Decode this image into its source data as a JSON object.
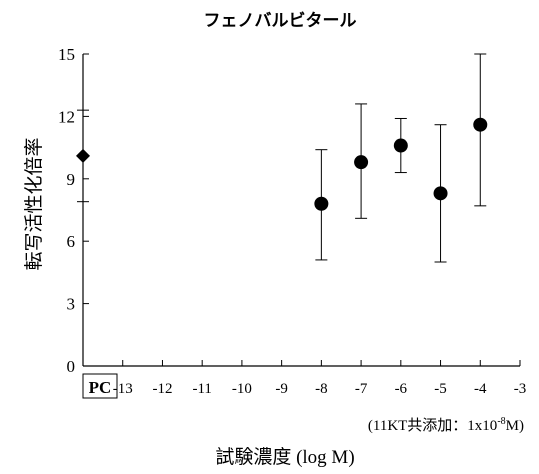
{
  "chart_data": {
    "type": "scatter",
    "title": "フェノバルビタール",
    "ylabel": "転写活性化倍率",
    "xlabel": "試験濃度 (log M)",
    "note_prefix": "(11KT共添加：1x10",
    "note_exp": "-8",
    "note_suffix": "M)",
    "ylim": [
      0,
      15
    ],
    "xlim": [
      -14,
      -3
    ],
    "yticks": [
      0,
      3,
      6,
      9,
      12,
      15
    ],
    "xticks": [
      -13,
      -12,
      -11,
      -10,
      -9,
      -8,
      -7,
      -6,
      -5,
      -4,
      -3
    ],
    "pc_label": "PC",
    "pc": {
      "y": 10.1,
      "err_low": 7.9,
      "err_high": 12.3,
      "marker": "diamond"
    },
    "points": [
      {
        "x": -8,
        "y": 7.8,
        "err_low": 5.1,
        "err_high": 10.4
      },
      {
        "x": -7,
        "y": 9.8,
        "err_low": 7.1,
        "err_high": 12.6
      },
      {
        "x": -6,
        "y": 10.6,
        "err_low": 9.3,
        "err_high": 11.9
      },
      {
        "x": -5,
        "y": 8.3,
        "err_low": 5.0,
        "err_high": 11.6
      },
      {
        "x": -4,
        "y": 11.6,
        "err_low": 7.7,
        "err_high": 15.0
      }
    ],
    "grid": false,
    "legend": "none",
    "colors": {
      "marker": "#000000",
      "axis": "#000000"
    }
  }
}
